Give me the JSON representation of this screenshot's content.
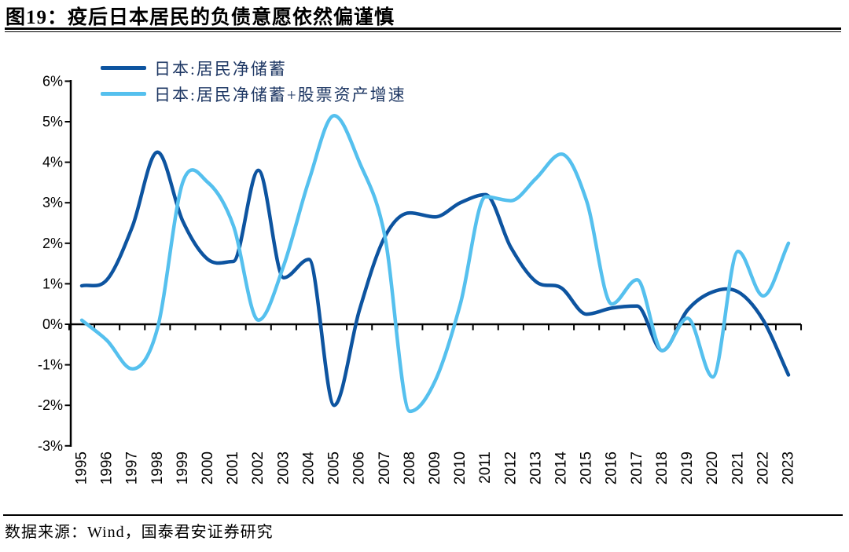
{
  "header": {
    "title": "图19：疫后日本居民的负债意愿依然偏谨慎"
  },
  "footer": {
    "source": "数据来源：Wind，国泰君安证券研究"
  },
  "chart_data": {
    "type": "line",
    "title": "图19：疫后日本居民的负债意愿依然偏谨慎",
    "xlabel": "",
    "ylabel": "",
    "y_unit": "%",
    "ylim": [
      -3,
      6
    ],
    "grid": false,
    "legend_position": "top-left",
    "axis_color": "#000000",
    "legend_text_color": "#1F3864",
    "y_axis": {
      "labels": [
        "6%",
        "5%",
        "4%",
        "3%",
        "2%",
        "1%",
        "0%",
        "-1%",
        "-2%",
        "-3%"
      ],
      "values": [
        6,
        5,
        4,
        3,
        2,
        1,
        0,
        -1,
        -2,
        -3
      ]
    },
    "categories": [
      "1995",
      "1996",
      "1997",
      "1998",
      "1999",
      "2000",
      "2001",
      "2002",
      "2003",
      "2004",
      "2005",
      "2006",
      "2007",
      "2008",
      "2009",
      "2010",
      "2011",
      "2012",
      "2013",
      "2014",
      "2015",
      "2016",
      "2017",
      "2018",
      "2019",
      "2020",
      "2021",
      "2022",
      "2023"
    ],
    "series": [
      {
        "id": "net-savings",
        "name": "日本:居民净储蓄",
        "color": "#0D54A0",
        "values": [
          0.95,
          1.1,
          2.4,
          4.25,
          2.55,
          1.6,
          1.55,
          3.8,
          1.15,
          1.6,
          -2.0,
          0.35,
          2.15,
          2.75,
          2.65,
          3.0,
          3.2,
          1.9,
          1.05,
          0.9,
          0.25,
          0.4,
          0.45,
          -0.65,
          0.35,
          0.8,
          0.8,
          0.1,
          -1.25
        ]
      },
      {
        "id": "net-savings-plus-stocks",
        "name": "日本:居民净储蓄+股票资产增速",
        "color": "#55C0EE",
        "values": [
          0.1,
          -0.4,
          -1.1,
          -0.1,
          3.5,
          3.5,
          2.45,
          0.1,
          1.45,
          3.55,
          5.15,
          4.0,
          2.2,
          -2.15,
          -1.4,
          0.5,
          3.15,
          3.05,
          3.6,
          4.2,
          3.05,
          0.5,
          1.1,
          -0.65,
          0.15,
          -1.3,
          1.8,
          0.7,
          2.0
        ]
      }
    ]
  }
}
